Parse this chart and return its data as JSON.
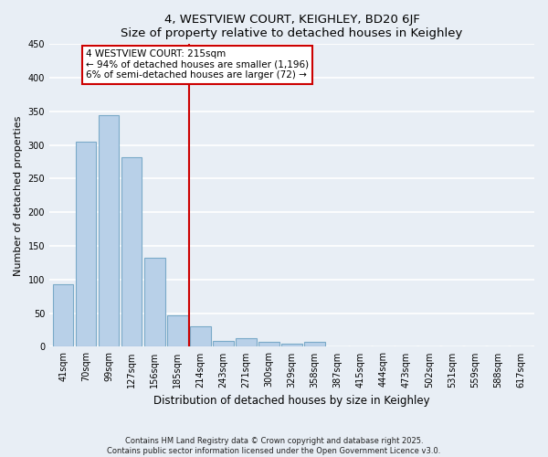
{
  "title": "4, WESTVIEW COURT, KEIGHLEY, BD20 6JF",
  "subtitle": "Size of property relative to detached houses in Keighley",
  "xlabel": "Distribution of detached houses by size in Keighley",
  "ylabel": "Number of detached properties",
  "bar_labels": [
    "41sqm",
    "70sqm",
    "99sqm",
    "127sqm",
    "156sqm",
    "185sqm",
    "214sqm",
    "243sqm",
    "271sqm",
    "300sqm",
    "329sqm",
    "358sqm",
    "387sqm",
    "415sqm",
    "444sqm",
    "473sqm",
    "502sqm",
    "531sqm",
    "559sqm",
    "588sqm",
    "617sqm"
  ],
  "bar_values": [
    93,
    305,
    344,
    282,
    133,
    47,
    30,
    9,
    13,
    8,
    5,
    7,
    1,
    1,
    0,
    1,
    0,
    0,
    0,
    0,
    1
  ],
  "bar_color": "#b8d0e8",
  "bar_edge_color": "#7aaac8",
  "vline_color": "#cc0000",
  "annotation_title": "4 WESTVIEW COURT: 215sqm",
  "annotation_line1": "← 94% of detached houses are smaller (1,196)",
  "annotation_line2": "6% of semi-detached houses are larger (72) →",
  "annotation_box_color": "#ffffff",
  "annotation_box_edge": "#cc0000",
  "ylim": [
    0,
    450
  ],
  "yticks": [
    0,
    50,
    100,
    150,
    200,
    250,
    300,
    350,
    400,
    450
  ],
  "footer_line1": "Contains HM Land Registry data © Crown copyright and database right 2025.",
  "footer_line2": "Contains public sector information licensed under the Open Government Licence v3.0.",
  "background_color": "#e8eef5",
  "plot_bg_color": "#e8eef5",
  "grid_color": "#ffffff"
}
